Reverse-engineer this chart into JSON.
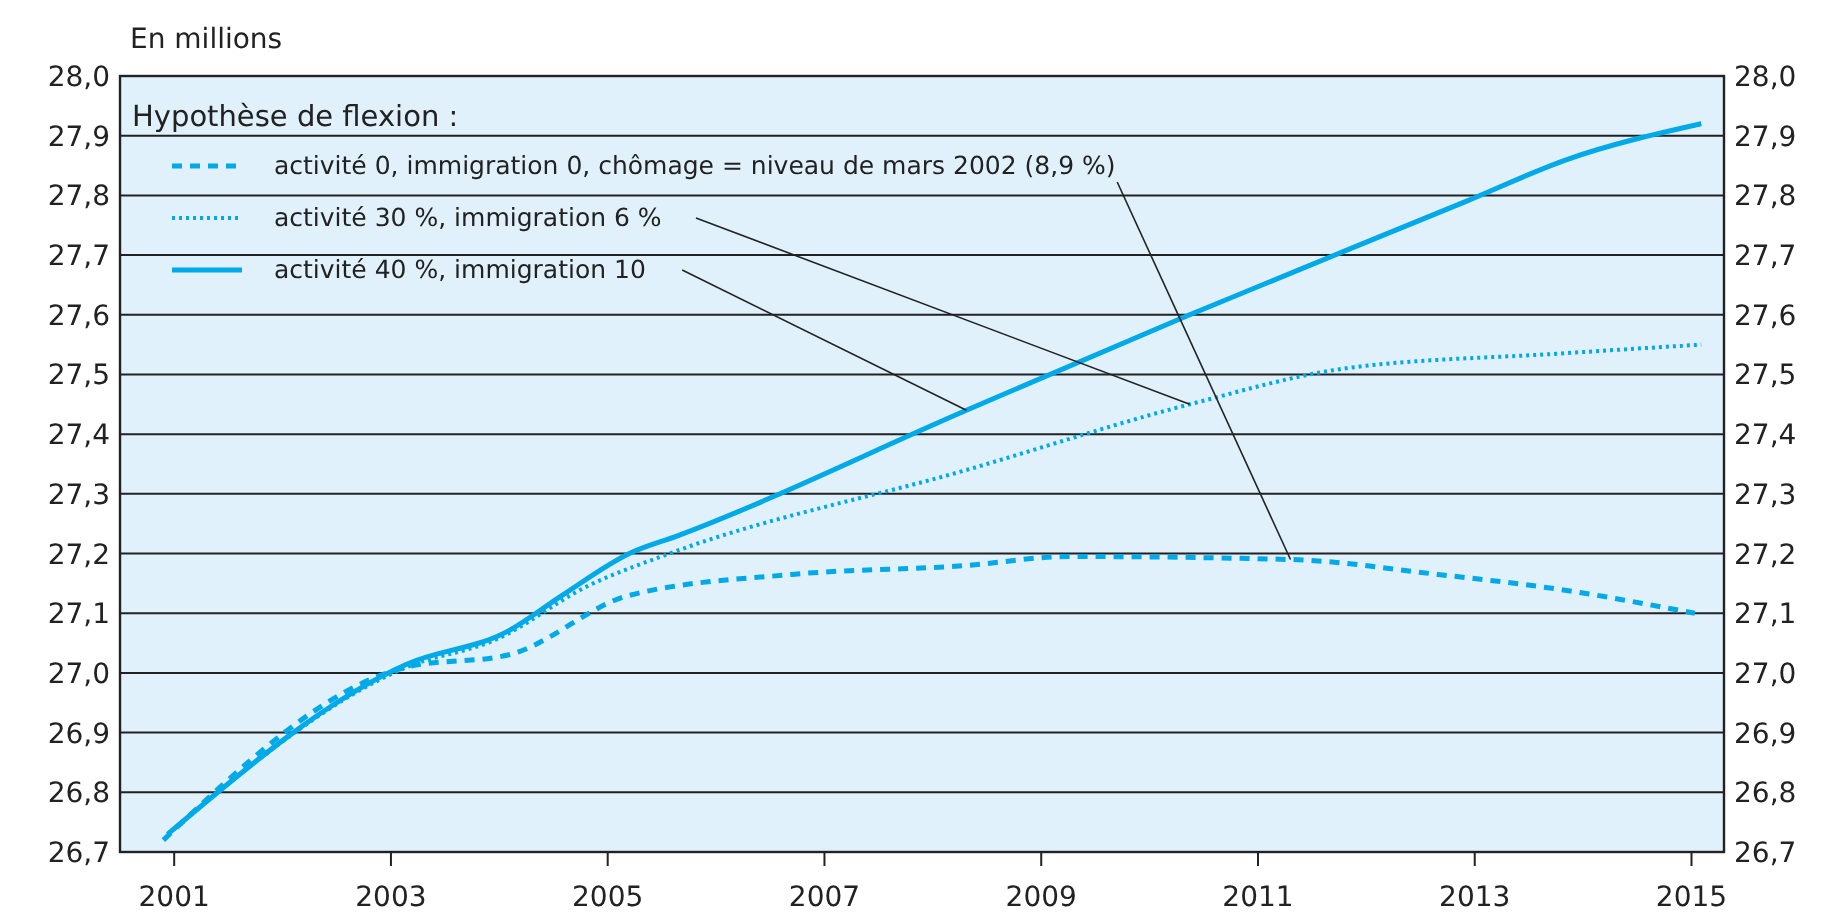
{
  "chart_data": {
    "type": "line",
    "ylabel": "En millions",
    "legend_title": "Hypothèse de flexion :",
    "legend": "top left",
    "grid": "y",
    "xlim": [
      2000.5,
      2015.3
    ],
    "xticks": [
      2001,
      2003,
      2005,
      2007,
      2009,
      2011,
      2013,
      2015
    ],
    "ylim": [
      26.7,
      28.0
    ],
    "yticks": [
      {
        "value": 26.7,
        "label": "26,7"
      },
      {
        "value": 26.8,
        "label": "26,8"
      },
      {
        "value": 26.9,
        "label": "26,9"
      },
      {
        "value": 27.0,
        "label": "27,0"
      },
      {
        "value": 27.1,
        "label": "27,1"
      },
      {
        "value": 27.2,
        "label": "27,2"
      },
      {
        "value": 27.3,
        "label": "27,3"
      },
      {
        "value": 27.4,
        "label": "27,4"
      },
      {
        "value": 27.5,
        "label": "27,5"
      },
      {
        "value": 27.6,
        "label": "27,6"
      },
      {
        "value": 27.7,
        "label": "27,7"
      },
      {
        "value": 27.8,
        "label": "27,8"
      },
      {
        "value": 27.9,
        "label": "27,9"
      },
      {
        "value": 28.0,
        "label": "28,0"
      }
    ],
    "y2lim": [
      26.7,
      28.0
    ],
    "y2ticks": [
      {
        "value": 26.7,
        "label": "26,7"
      },
      {
        "value": 26.8,
        "label": "26,8"
      },
      {
        "value": 26.9,
        "label": "26,9"
      },
      {
        "value": 27.0,
        "label": "27,0"
      },
      {
        "value": 27.1,
        "label": "27,1"
      },
      {
        "value": 27.2,
        "label": "27,2"
      },
      {
        "value": 27.3,
        "label": "27,3"
      },
      {
        "value": 27.4,
        "label": "27,4"
      },
      {
        "value": 27.5,
        "label": "27,5"
      },
      {
        "value": 27.6,
        "label": "27,6"
      },
      {
        "value": 27.7,
        "label": "27,7"
      },
      {
        "value": 27.8,
        "label": "27,8"
      },
      {
        "value": 27.9,
        "label": "27,9"
      },
      {
        "value": 28.0,
        "label": "28,0"
      }
    ],
    "series": [
      {
        "name": "activité 0, immigration 0, chômage = niveau de mars 2002 (8,9 %)",
        "color": "#00a9e8",
        "line_style": "dashed",
        "x": [
          2000.9,
          2003.15,
          2004.08,
          2005.2,
          2006.7,
          2008.31,
          2009.25,
          2011.3,
          2012.66,
          2013.78,
          2015.03
        ],
        "values": [
          26.72,
          27.01,
          27.03,
          27.13,
          27.165,
          27.18,
          27.195,
          27.19,
          27.165,
          27.14,
          27.1
        ]
      },
      {
        "name": "activité 30 %, immigration 6 %",
        "color": "#00a9e8",
        "line_style": "dotted",
        "x": [
          2000.94,
          2003.15,
          2003.97,
          2004.82,
          2005.57,
          2008.31,
          2010.37,
          2011.8,
          2013.78,
          2015.09
        ],
        "values": [
          26.73,
          27.01,
          27.056,
          27.146,
          27.2,
          27.34,
          27.45,
          27.51,
          27.535,
          27.55
        ]
      },
      {
        "name": "activité 40 %, immigration 10",
        "color": "#00a9e8",
        "line_style": "solid",
        "x": [
          2000.94,
          2003.15,
          2004.08,
          2004.58,
          2005.2,
          2005.65,
          2008.31,
          2010.37,
          2012.92,
          2013.85,
          2015.09
        ],
        "values": [
          26.73,
          27.015,
          27.07,
          27.13,
          27.2,
          27.23,
          27.44,
          27.6,
          27.79,
          27.86,
          27.92
        ]
      }
    ]
  }
}
